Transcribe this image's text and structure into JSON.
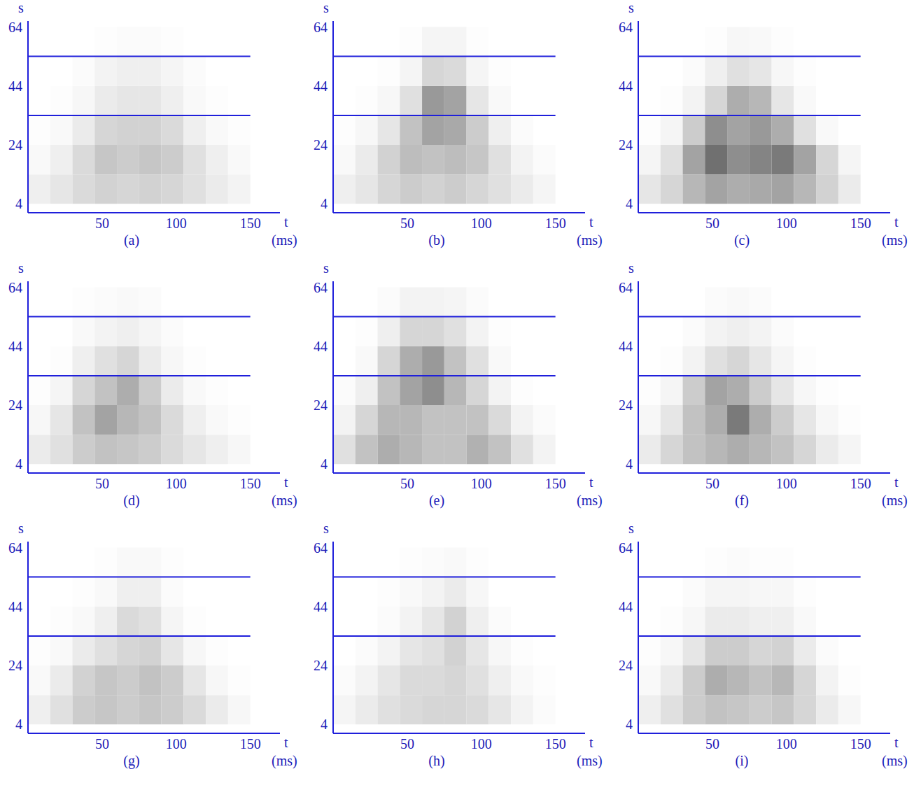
{
  "chart_data": [
    {
      "type": "heatmap",
      "title": "(a)",
      "xlabel": "t",
      "xlabel_unit": "(ms)",
      "ylabel": "s",
      "xlim": [
        0,
        170
      ],
      "ylim": [
        1,
        66
      ],
      "xticks": [
        50,
        100,
        150
      ],
      "yticks": [
        4,
        24,
        44,
        64
      ],
      "color": "#1f1fdb",
      "hlines": [
        34,
        54
      ],
      "t_bins": [
        0,
        15,
        30,
        45,
        60,
        75,
        90,
        105,
        120,
        135,
        150
      ],
      "s_bins": [
        4,
        14,
        24,
        34,
        44,
        54,
        64
      ],
      "cells": [
        [
          0.08,
          0.12,
          0.18,
          0.22,
          0.2,
          0.22,
          0.2,
          0.15,
          0.1,
          0.06
        ],
        [
          0.03,
          0.08,
          0.18,
          0.28,
          0.25,
          0.28,
          0.25,
          0.15,
          0.08,
          0.03
        ],
        [
          0.01,
          0.03,
          0.1,
          0.2,
          0.22,
          0.22,
          0.18,
          0.08,
          0.03,
          0.01
        ],
        [
          0,
          0.01,
          0.04,
          0.1,
          0.12,
          0.12,
          0.08,
          0.03,
          0.01,
          0
        ],
        [
          0,
          0,
          0.02,
          0.06,
          0.08,
          0.08,
          0.05,
          0.02,
          0,
          0
        ],
        [
          0,
          0,
          0,
          0.01,
          0.02,
          0.02,
          0.01,
          0,
          0,
          0
        ]
      ]
    },
    {
      "type": "heatmap",
      "title": "(b)",
      "xlabel": "t",
      "xlabel_unit": "(ms)",
      "ylabel": "s",
      "xlim": [
        0,
        170
      ],
      "ylim": [
        1,
        66
      ],
      "xticks": [
        50,
        100,
        150
      ],
      "yticks": [
        4,
        24,
        44,
        64
      ],
      "color": "#1f1fdb",
      "hlines": [
        34,
        54
      ],
      "t_bins": [
        0,
        15,
        30,
        45,
        60,
        75,
        90,
        105,
        120,
        135,
        150
      ],
      "s_bins": [
        4,
        14,
        24,
        34,
        44,
        54,
        64
      ],
      "cells": [
        [
          0.08,
          0.12,
          0.2,
          0.25,
          0.22,
          0.25,
          0.2,
          0.15,
          0.1,
          0.05
        ],
        [
          0.03,
          0.1,
          0.22,
          0.32,
          0.3,
          0.32,
          0.28,
          0.15,
          0.06,
          0.02
        ],
        [
          0.01,
          0.04,
          0.12,
          0.3,
          0.45,
          0.42,
          0.25,
          0.08,
          0.02,
          0
        ],
        [
          0,
          0.01,
          0.04,
          0.15,
          0.5,
          0.45,
          0.12,
          0.03,
          0,
          0
        ],
        [
          0,
          0,
          0.01,
          0.05,
          0.2,
          0.18,
          0.05,
          0.01,
          0,
          0
        ],
        [
          0,
          0,
          0,
          0.01,
          0.05,
          0.05,
          0.01,
          0,
          0,
          0
        ]
      ]
    },
    {
      "type": "heatmap",
      "title": "(c)",
      "xlabel": "t",
      "xlabel_unit": "(ms)",
      "ylabel": "s",
      "xlim": [
        0,
        170
      ],
      "ylim": [
        1,
        66
      ],
      "xticks": [
        50,
        100,
        150
      ],
      "yticks": [
        4,
        24,
        44,
        64
      ],
      "color": "#1f1fdb",
      "hlines": [
        34,
        54
      ],
      "t_bins": [
        0,
        15,
        30,
        45,
        60,
        75,
        90,
        105,
        120,
        135,
        150
      ],
      "s_bins": [
        4,
        14,
        24,
        34,
        44,
        54,
        64
      ],
      "cells": [
        [
          0.12,
          0.2,
          0.35,
          0.45,
          0.4,
          0.42,
          0.45,
          0.35,
          0.22,
          0.1
        ],
        [
          0.05,
          0.15,
          0.45,
          0.7,
          0.55,
          0.6,
          0.65,
          0.45,
          0.2,
          0.05
        ],
        [
          0.01,
          0.05,
          0.25,
          0.55,
          0.45,
          0.5,
          0.4,
          0.15,
          0.03,
          0
        ],
        [
          0,
          0.01,
          0.06,
          0.2,
          0.4,
          0.35,
          0.12,
          0.03,
          0,
          0
        ],
        [
          0,
          0,
          0.02,
          0.08,
          0.15,
          0.12,
          0.04,
          0.01,
          0,
          0
        ],
        [
          0,
          0,
          0,
          0.01,
          0.04,
          0.03,
          0.01,
          0,
          0,
          0
        ]
      ]
    },
    {
      "type": "heatmap",
      "title": "(d)",
      "xlabel": "t",
      "xlabel_unit": "(ms)",
      "ylabel": "s",
      "xlim": [
        0,
        170
      ],
      "ylim": [
        1,
        66
      ],
      "xticks": [
        50,
        100,
        150
      ],
      "yticks": [
        4,
        24,
        44,
        64
      ],
      "color": "#1f1fdb",
      "hlines": [
        34,
        54
      ],
      "t_bins": [
        0,
        15,
        30,
        45,
        60,
        75,
        90,
        105,
        120,
        135,
        150
      ],
      "s_bins": [
        4,
        14,
        24,
        34,
        44,
        54,
        64
      ],
      "cells": [
        [
          0.1,
          0.15,
          0.25,
          0.3,
          0.28,
          0.25,
          0.18,
          0.12,
          0.08,
          0.04
        ],
        [
          0.04,
          0.12,
          0.3,
          0.45,
          0.35,
          0.3,
          0.18,
          0.08,
          0.03,
          0.01
        ],
        [
          0.01,
          0.05,
          0.2,
          0.3,
          0.4,
          0.25,
          0.1,
          0.03,
          0.01,
          0
        ],
        [
          0,
          0.01,
          0.08,
          0.15,
          0.2,
          0.1,
          0.04,
          0.01,
          0,
          0
        ],
        [
          0,
          0,
          0.03,
          0.06,
          0.08,
          0.05,
          0.02,
          0,
          0,
          0
        ],
        [
          0,
          0,
          0.01,
          0.02,
          0.03,
          0.02,
          0,
          0,
          0,
          0
        ]
      ]
    },
    {
      "type": "heatmap",
      "title": "(e)",
      "xlabel": "t",
      "xlabel_unit": "(ms)",
      "ylabel": "s",
      "xlim": [
        0,
        170
      ],
      "ylim": [
        1,
        66
      ],
      "xticks": [
        50,
        100,
        150
      ],
      "yticks": [
        4,
        24,
        44,
        64
      ],
      "color": "#1f1fdb",
      "hlines": [
        34,
        54
      ],
      "t_bins": [
        0,
        15,
        30,
        45,
        60,
        75,
        90,
        105,
        120,
        135,
        150
      ],
      "s_bins": [
        4,
        14,
        24,
        34,
        44,
        54,
        64
      ],
      "cells": [
        [
          0.15,
          0.3,
          0.4,
          0.35,
          0.3,
          0.3,
          0.38,
          0.3,
          0.15,
          0.06
        ],
        [
          0.06,
          0.2,
          0.35,
          0.35,
          0.3,
          0.3,
          0.3,
          0.18,
          0.06,
          0.02
        ],
        [
          0.02,
          0.08,
          0.3,
          0.45,
          0.55,
          0.35,
          0.2,
          0.06,
          0.01,
          0
        ],
        [
          0,
          0.03,
          0.2,
          0.4,
          0.5,
          0.3,
          0.15,
          0.03,
          0,
          0
        ],
        [
          0,
          0.01,
          0.08,
          0.2,
          0.2,
          0.15,
          0.06,
          0.01,
          0,
          0
        ],
        [
          0,
          0,
          0.02,
          0.06,
          0.06,
          0.05,
          0.02,
          0,
          0,
          0
        ]
      ]
    },
    {
      "type": "heatmap",
      "title": "(f)",
      "xlabel": "t",
      "xlabel_unit": "(ms)",
      "ylabel": "s",
      "xlim": [
        0,
        170
      ],
      "ylim": [
        1,
        66
      ],
      "xticks": [
        50,
        100,
        150
      ],
      "yticks": [
        4,
        24,
        44,
        64
      ],
      "color": "#1f1fdb",
      "hlines": [
        34,
        54
      ],
      "t_bins": [
        0,
        15,
        30,
        45,
        60,
        75,
        90,
        105,
        120,
        135,
        150
      ],
      "s_bins": [
        4,
        14,
        24,
        34,
        44,
        54,
        64
      ],
      "cells": [
        [
          0.1,
          0.2,
          0.3,
          0.35,
          0.4,
          0.35,
          0.3,
          0.2,
          0.1,
          0.05
        ],
        [
          0.04,
          0.12,
          0.3,
          0.4,
          0.65,
          0.4,
          0.25,
          0.12,
          0.04,
          0.01
        ],
        [
          0.01,
          0.05,
          0.25,
          0.45,
          0.4,
          0.25,
          0.12,
          0.04,
          0.01,
          0
        ],
        [
          0,
          0.01,
          0.06,
          0.15,
          0.2,
          0.12,
          0.05,
          0.01,
          0,
          0
        ],
        [
          0,
          0,
          0.02,
          0.06,
          0.08,
          0.06,
          0.02,
          0,
          0,
          0
        ],
        [
          0,
          0,
          0,
          0.02,
          0.03,
          0.02,
          0,
          0,
          0,
          0
        ]
      ]
    },
    {
      "type": "heatmap",
      "title": "(g)",
      "xlabel": "t",
      "xlabel_unit": "(ms)",
      "ylabel": "s",
      "xlim": [
        0,
        170
      ],
      "ylim": [
        1,
        66
      ],
      "xticks": [
        50,
        100,
        150
      ],
      "yticks": [
        4,
        24,
        44,
        64
      ],
      "color": "#1f1fdb",
      "hlines": [
        34,
        54
      ],
      "t_bins": [
        0,
        15,
        30,
        45,
        60,
        75,
        90,
        105,
        120,
        135,
        150
      ],
      "s_bins": [
        4,
        14,
        24,
        34,
        44,
        54,
        64
      ],
      "cells": [
        [
          0.08,
          0.15,
          0.25,
          0.28,
          0.25,
          0.28,
          0.25,
          0.18,
          0.1,
          0.04
        ],
        [
          0.03,
          0.1,
          0.22,
          0.28,
          0.25,
          0.3,
          0.25,
          0.12,
          0.04,
          0.01
        ],
        [
          0.01,
          0.03,
          0.1,
          0.15,
          0.2,
          0.22,
          0.12,
          0.04,
          0.01,
          0
        ],
        [
          0,
          0.01,
          0.03,
          0.08,
          0.18,
          0.15,
          0.05,
          0.01,
          0,
          0
        ],
        [
          0,
          0,
          0.01,
          0.03,
          0.08,
          0.08,
          0.02,
          0,
          0,
          0
        ],
        [
          0,
          0,
          0,
          0.01,
          0.03,
          0.03,
          0.01,
          0,
          0,
          0
        ]
      ]
    },
    {
      "type": "heatmap",
      "title": "(h)",
      "xlabel": "t",
      "xlabel_unit": "(ms)",
      "ylabel": "s",
      "xlim": [
        0,
        170
      ],
      "ylim": [
        1,
        66
      ],
      "xticks": [
        50,
        100,
        150
      ],
      "yticks": [
        4,
        24,
        44,
        64
      ],
      "color": "#1f1fdb",
      "hlines": [
        34,
        54
      ],
      "t_bins": [
        0,
        15,
        30,
        45,
        60,
        75,
        90,
        105,
        120,
        135,
        150
      ],
      "s_bins": [
        4,
        14,
        24,
        34,
        44,
        54,
        64
      ],
      "cells": [
        [
          0.05,
          0.1,
          0.15,
          0.18,
          0.2,
          0.2,
          0.18,
          0.12,
          0.06,
          0.02
        ],
        [
          0.02,
          0.06,
          0.12,
          0.18,
          0.18,
          0.2,
          0.15,
          0.08,
          0.03,
          0.01
        ],
        [
          0,
          0.02,
          0.06,
          0.12,
          0.15,
          0.22,
          0.12,
          0.04,
          0.01,
          0
        ],
        [
          0,
          0,
          0.02,
          0.06,
          0.12,
          0.22,
          0.08,
          0.02,
          0,
          0
        ],
        [
          0,
          0,
          0.01,
          0.03,
          0.06,
          0.1,
          0.04,
          0,
          0,
          0
        ],
        [
          0,
          0,
          0,
          0.01,
          0.02,
          0.03,
          0.01,
          0,
          0,
          0
        ]
      ]
    },
    {
      "type": "heatmap",
      "title": "(i)",
      "xlabel": "t",
      "xlabel_unit": "(ms)",
      "ylabel": "s",
      "xlim": [
        0,
        170
      ],
      "ylim": [
        1,
        66
      ],
      "xticks": [
        50,
        100,
        150
      ],
      "yticks": [
        4,
        24,
        44,
        64
      ],
      "color": "#1f1fdb",
      "hlines": [
        34,
        54
      ],
      "t_bins": [
        0,
        15,
        30,
        45,
        60,
        75,
        90,
        105,
        120,
        135,
        150
      ],
      "s_bins": [
        4,
        14,
        24,
        34,
        44,
        54,
        64
      ],
      "cells": [
        [
          0.08,
          0.15,
          0.25,
          0.3,
          0.28,
          0.25,
          0.28,
          0.2,
          0.1,
          0.04
        ],
        [
          0.03,
          0.1,
          0.25,
          0.4,
          0.35,
          0.3,
          0.35,
          0.2,
          0.06,
          0.01
        ],
        [
          0.01,
          0.04,
          0.12,
          0.25,
          0.25,
          0.2,
          0.22,
          0.1,
          0.02,
          0
        ],
        [
          0,
          0.01,
          0.04,
          0.1,
          0.1,
          0.08,
          0.08,
          0.03,
          0,
          0
        ],
        [
          0,
          0,
          0.02,
          0.05,
          0.05,
          0.04,
          0.04,
          0.01,
          0,
          0
        ],
        [
          0,
          0,
          0,
          0.01,
          0.02,
          0.01,
          0.01,
          0,
          0,
          0
        ]
      ]
    }
  ]
}
